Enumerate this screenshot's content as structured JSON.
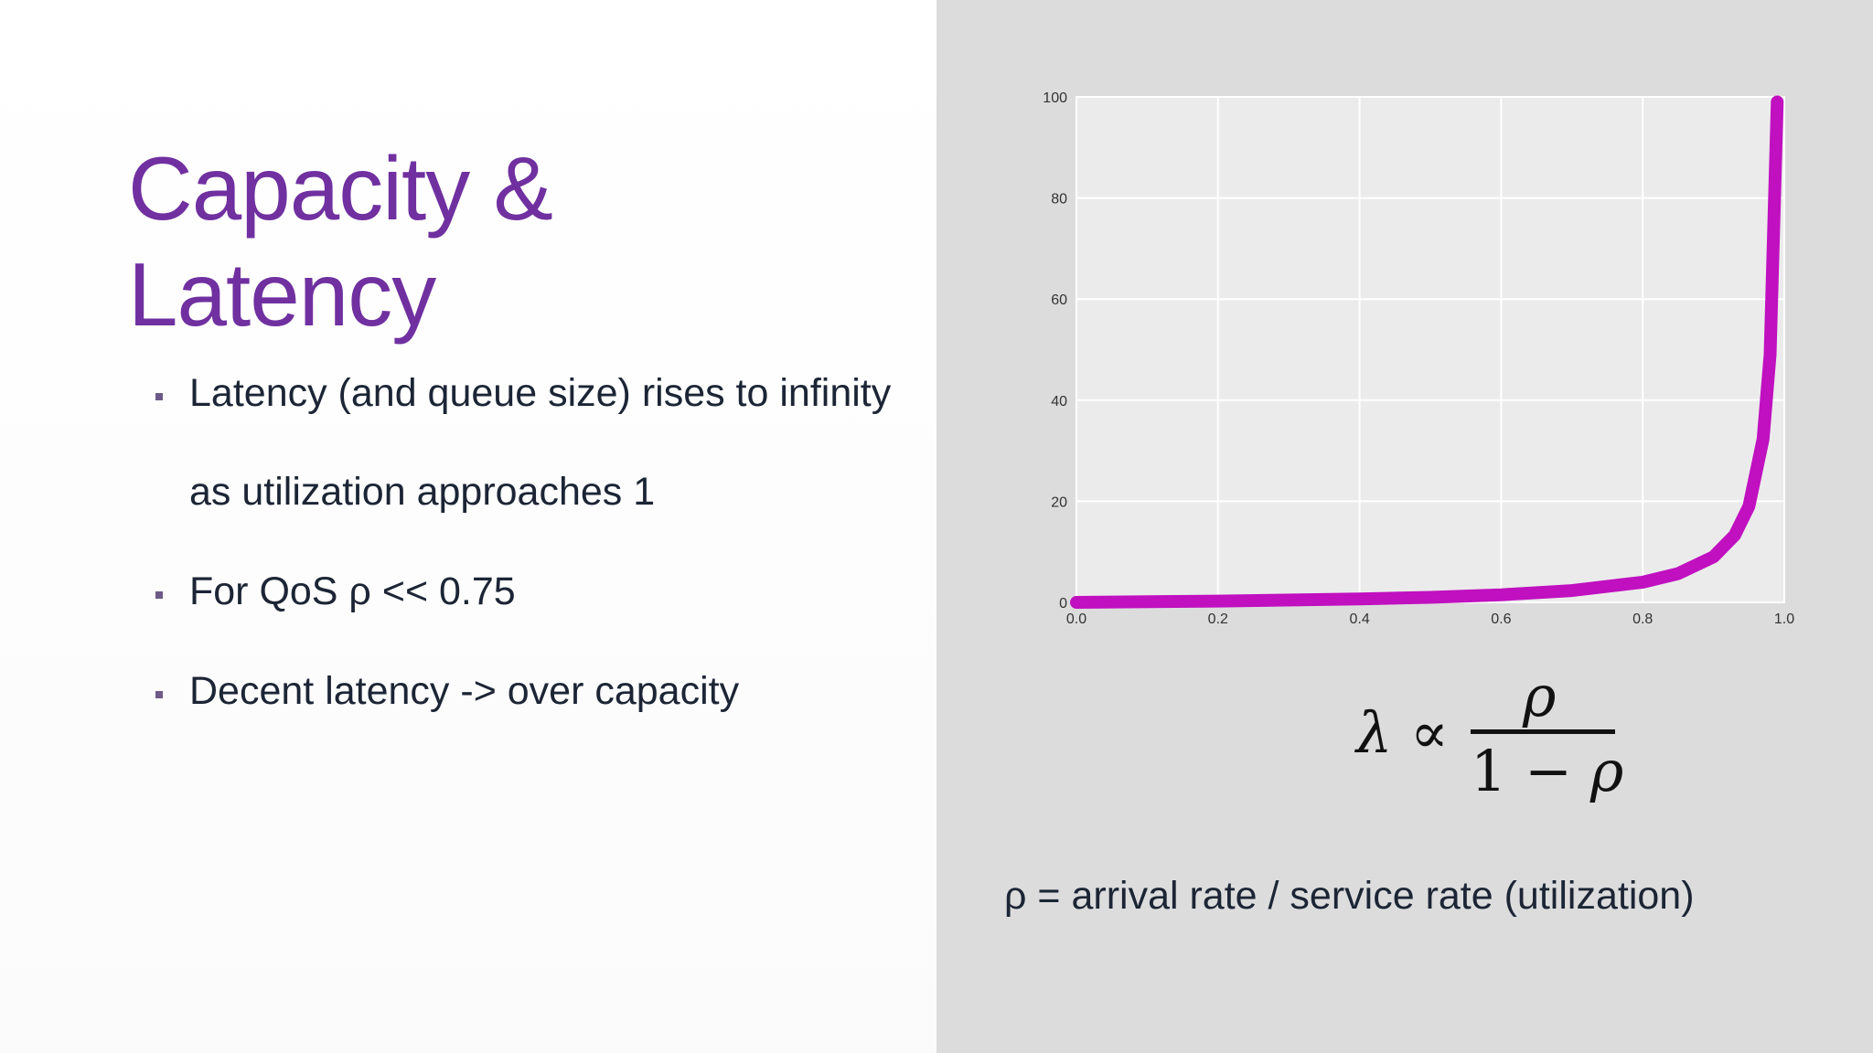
{
  "slide": {
    "title_lines": [
      "Capacity &",
      "Latency"
    ],
    "bullets": [
      "Latency (and queue size) rises to infinity",
      "as utilization approaches 1",
      "For QoS ρ << 0.75",
      "Decent latency -> over capacity"
    ],
    "title_color": "#7030a0",
    "text_color": "#1c2535"
  },
  "formula": {
    "lhs": "λ ∝",
    "numerator": "ρ",
    "denominator_prefix": "1 − ",
    "denominator_symbol": "ρ"
  },
  "definition": "ρ = arrival rate / service rate (utilization)",
  "chart_data": {
    "type": "line",
    "title": "",
    "xlabel": "",
    "ylabel": "",
    "xlim": [
      0.0,
      1.0
    ],
    "ylim": [
      0,
      100
    ],
    "x_ticks": [
      "0.0",
      "0.2",
      "0.4",
      "0.6",
      "0.8",
      "1.0"
    ],
    "y_ticks": [
      "0",
      "20",
      "40",
      "60",
      "80",
      "100"
    ],
    "grid": true,
    "legend": "none",
    "series": [
      {
        "color": "#c010c0",
        "x": [
          0.0,
          0.2,
          0.4,
          0.5,
          0.6,
          0.7,
          0.8,
          0.85,
          0.9,
          0.93,
          0.95,
          0.97,
          0.98,
          0.99
        ],
        "y": [
          0.0,
          0.25,
          0.67,
          1.0,
          1.5,
          2.33,
          4.0,
          5.67,
          9.0,
          13.3,
          19.0,
          32.3,
          49.0,
          99.0
        ]
      }
    ]
  }
}
